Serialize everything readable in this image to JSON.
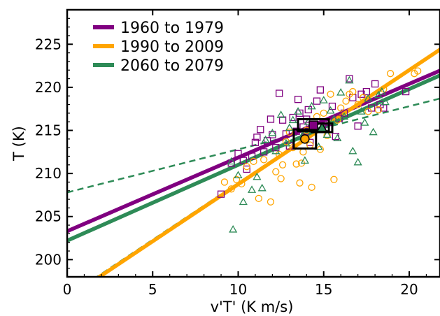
{
  "chart_data": {
    "type": "scatter",
    "xlabel": "v'T' (K m/s)",
    "ylabel": "T (K)",
    "xlim": [
      0,
      21.8
    ],
    "ylim": [
      198,
      229
    ],
    "xticks": [
      0,
      5,
      10,
      15,
      20
    ],
    "yticks": [
      200,
      205,
      210,
      215,
      220,
      225
    ],
    "grid": false,
    "legend_position": "top-left",
    "series": [
      {
        "name": "1960 to 1979",
        "color": "#800080",
        "marker": "square",
        "fit": {
          "intercept": 203.3,
          "slope": 0.855
        },
        "mean": {
          "x": 14.4,
          "y": 215.6,
          "xerr": 0.9,
          "yerr": 0.7
        },
        "points": [
          [
            9.0,
            207.6
          ],
          [
            9.6,
            211.2
          ],
          [
            10.0,
            212.3
          ],
          [
            10.3,
            211.5
          ],
          [
            10.5,
            210.5
          ],
          [
            10.8,
            212.0
          ],
          [
            11.0,
            213.6
          ],
          [
            11.1,
            214.2
          ],
          [
            11.3,
            215.1
          ],
          [
            11.5,
            212.5
          ],
          [
            11.7,
            213.8
          ],
          [
            11.9,
            216.3
          ],
          [
            12.0,
            214.5
          ],
          [
            12.2,
            213.0
          ],
          [
            12.4,
            219.3
          ],
          [
            12.6,
            216.2
          ],
          [
            12.8,
            214.6
          ],
          [
            13.0,
            213.2
          ],
          [
            13.2,
            216.5
          ],
          [
            13.4,
            214.9
          ],
          [
            13.5,
            218.6
          ],
          [
            13.6,
            217.0
          ],
          [
            13.8,
            215.4
          ],
          [
            13.9,
            214.2
          ],
          [
            14.0,
            216.3
          ],
          [
            14.1,
            217.4
          ],
          [
            14.2,
            213.6
          ],
          [
            14.4,
            215.6
          ],
          [
            14.6,
            218.4
          ],
          [
            14.8,
            219.7
          ],
          [
            15.0,
            216.0
          ],
          [
            15.3,
            215.2
          ],
          [
            15.5,
            217.8
          ],
          [
            15.7,
            214.3
          ],
          [
            15.9,
            216.4
          ],
          [
            16.2,
            217.0
          ],
          [
            16.5,
            221.0
          ],
          [
            16.7,
            218.8
          ],
          [
            17.0,
            215.5
          ],
          [
            17.2,
            219.2
          ],
          [
            17.5,
            219.5
          ],
          [
            17.8,
            217.6
          ],
          [
            18.0,
            220.4
          ],
          [
            18.3,
            218.0
          ],
          [
            18.5,
            217.6
          ],
          [
            19.8,
            219.5
          ]
        ]
      },
      {
        "name": "1990 to 2009",
        "color": "#FFA500",
        "marker": "circle",
        "fit": {
          "intercept": 195.5,
          "slope": 1.325
        },
        "mean": {
          "x": 13.9,
          "y": 214.0,
          "xerr": 0.65,
          "yerr": 1.1
        },
        "points": [
          [
            9.2,
            209.0
          ],
          [
            9.6,
            208.2
          ],
          [
            9.9,
            209.3
          ],
          [
            10.2,
            208.8
          ],
          [
            10.5,
            210.8
          ],
          [
            10.9,
            211.4
          ],
          [
            11.2,
            207.1
          ],
          [
            11.5,
            211.6
          ],
          [
            11.9,
            206.7
          ],
          [
            12.2,
            210.2
          ],
          [
            12.4,
            212.2
          ],
          [
            12.5,
            209.4
          ],
          [
            12.6,
            211.0
          ],
          [
            12.8,
            213.7
          ],
          [
            13.0,
            214.8
          ],
          [
            13.2,
            213.0
          ],
          [
            13.4,
            211.1
          ],
          [
            13.6,
            208.9
          ],
          [
            13.7,
            211.2
          ],
          [
            13.8,
            212.5
          ],
          [
            14.0,
            215.0
          ],
          [
            14.2,
            213.3
          ],
          [
            14.3,
            208.4
          ],
          [
            14.6,
            216.6
          ],
          [
            14.8,
            212.8
          ],
          [
            15.0,
            217.0
          ],
          [
            15.2,
            214.4
          ],
          [
            15.4,
            219.2
          ],
          [
            15.6,
            209.3
          ],
          [
            15.8,
            216.2
          ],
          [
            16.0,
            217.6
          ],
          [
            16.3,
            218.4
          ],
          [
            16.5,
            219.2
          ],
          [
            16.7,
            219.5
          ],
          [
            17.0,
            218.0
          ],
          [
            17.3,
            218.8
          ],
          [
            17.6,
            217.2
          ],
          [
            18.2,
            217.4
          ],
          [
            18.5,
            219.8
          ],
          [
            18.9,
            221.6
          ],
          [
            20.3,
            221.6
          ],
          [
            20.5,
            221.9
          ]
        ]
      },
      {
        "name": "2060 to 2079",
        "color": "#2E8B57",
        "marker": "triangle",
        "fit": {
          "intercept": 202.2,
          "slope": 0.88
        },
        "mean": {
          "x": 14.9,
          "y": 215.3,
          "xerr": 0.6,
          "yerr": 0.5
        },
        "points": [
          [
            9.6,
            211.4
          ],
          [
            9.7,
            203.5
          ],
          [
            10.0,
            209.8
          ],
          [
            10.3,
            206.7
          ],
          [
            10.8,
            208.1
          ],
          [
            11.1,
            209.6
          ],
          [
            11.4,
            208.3
          ],
          [
            11.6,
            213.9
          ],
          [
            12.0,
            214.7
          ],
          [
            12.2,
            212.6
          ],
          [
            12.5,
            216.8
          ],
          [
            12.8,
            213.5
          ],
          [
            13.0,
            215.3
          ],
          [
            13.2,
            216.2
          ],
          [
            13.5,
            217.2
          ],
          [
            13.7,
            214.2
          ],
          [
            13.9,
            211.5
          ],
          [
            14.1,
            216.0
          ],
          [
            14.3,
            217.8
          ],
          [
            14.5,
            215.1
          ],
          [
            14.7,
            213.1
          ],
          [
            15.0,
            218.5
          ],
          [
            15.2,
            214.5
          ],
          [
            15.4,
            217.3
          ],
          [
            15.6,
            216.3
          ],
          [
            15.8,
            214.1
          ],
          [
            16.0,
            219.4
          ],
          [
            16.2,
            216.6
          ],
          [
            16.5,
            220.8
          ],
          [
            16.7,
            212.6
          ],
          [
            17.0,
            211.3
          ],
          [
            17.2,
            217.2
          ],
          [
            17.4,
            215.9
          ],
          [
            17.6,
            218.7
          ],
          [
            17.9,
            214.8
          ],
          [
            18.2,
            219.1
          ],
          [
            18.4,
            219.5
          ],
          [
            18.6,
            218.3
          ]
        ]
      }
    ],
    "reference_lines": [
      {
        "color": "#2E8B57",
        "style": "dashed",
        "intercept": 207.8,
        "slope": 0.5
      },
      {
        "color": "#2E8B57",
        "style": "dashed",
        "intercept": 195.7,
        "slope": 1.32
      }
    ]
  }
}
